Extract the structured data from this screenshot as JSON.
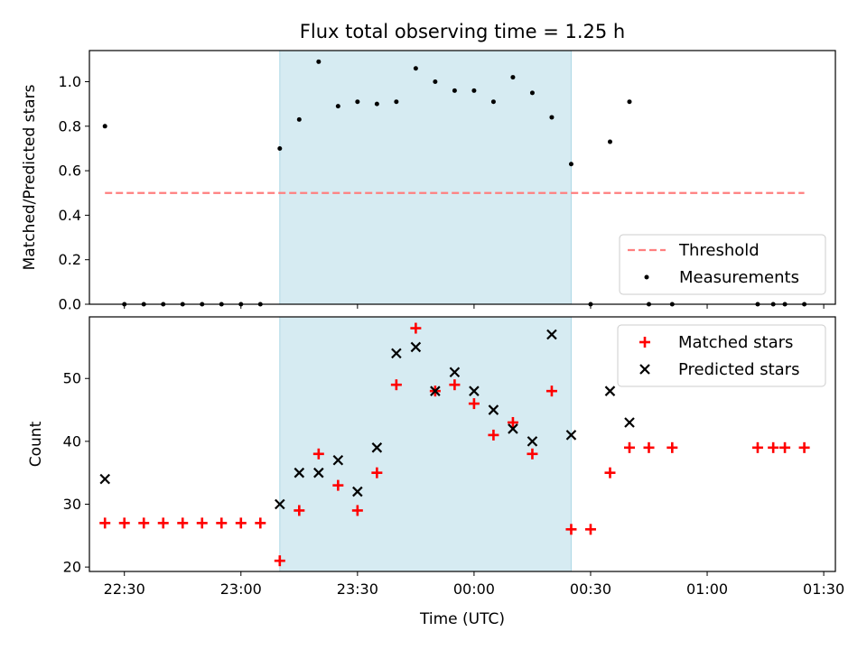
{
  "chart_data": [
    {
      "type": "scatter",
      "title": "Flux total observing time = 1.25 h",
      "ylabel": "Matched/Predicted stars",
      "xlabel": "",
      "ylim": [
        0,
        1.14
      ],
      "yticks": [
        "0.0",
        "0.2",
        "0.4",
        "0.6",
        "0.8",
        "1.0"
      ],
      "xlim": [
        "22:21",
        "01:33"
      ],
      "shaded_interval": [
        "23:10",
        "00:25"
      ],
      "threshold": {
        "name": "Threshold",
        "value": 0.5,
        "x": [
          "22:25",
          "01:25"
        ],
        "color": "#ff7f7f",
        "style": "dashed"
      },
      "series": [
        {
          "name": "Measurements",
          "color": "#000000",
          "x": [
            "22:25",
            "22:30",
            "22:35",
            "22:40",
            "22:45",
            "22:50",
            "22:55",
            "23:00",
            "23:05",
            "23:10",
            "23:15",
            "23:20",
            "23:25",
            "23:30",
            "23:35",
            "23:40",
            "23:45",
            "23:50",
            "23:55",
            "00:00",
            "00:05",
            "00:10",
            "00:15",
            "00:20",
            "00:25",
            "00:30",
            "00:35",
            "00:40",
            "00:45",
            "00:51",
            "01:13",
            "01:17",
            "01:20",
            "01:25"
          ],
          "y": [
            0.8,
            0,
            0,
            0,
            0,
            0,
            0,
            0,
            0,
            0.7,
            0.83,
            1.09,
            0.89,
            0.91,
            0.9,
            0.91,
            1.06,
            1.0,
            0.96,
            0.96,
            0.91,
            1.02,
            0.95,
            0.84,
            0.63,
            0,
            0.73,
            0.91,
            0,
            0,
            0,
            0,
            0,
            0
          ]
        }
      ],
      "legend_position": "lower-right",
      "shade_color": "#add8e6"
    },
    {
      "type": "scatter",
      "title": "",
      "ylabel": "Count",
      "xlabel": "Time (UTC)",
      "ylim": [
        19.3,
        59.8
      ],
      "yticks": [
        "20",
        "30",
        "40",
        "50"
      ],
      "xlim": [
        "22:21",
        "01:33"
      ],
      "xticks": [
        "22:30",
        "23:00",
        "23:30",
        "00:00",
        "00:30",
        "01:00",
        "01:30"
      ],
      "shaded_interval": [
        "23:10",
        "00:25"
      ],
      "series": [
        {
          "name": "Matched stars",
          "marker": "plus",
          "color": "#ff0000",
          "x": [
            "22:25",
            "22:30",
            "22:35",
            "22:40",
            "22:45",
            "22:50",
            "22:55",
            "23:00",
            "23:05",
            "23:10",
            "23:15",
            "23:20",
            "23:25",
            "23:30",
            "23:35",
            "23:40",
            "23:45",
            "23:50",
            "23:55",
            "00:00",
            "00:05",
            "00:10",
            "00:15",
            "00:20",
            "00:25",
            "00:30",
            "00:35",
            "00:40",
            "00:45",
            "00:51",
            "01:13",
            "01:17",
            "01:20",
            "01:25"
          ],
          "y": [
            27,
            27,
            27,
            27,
            27,
            27,
            27,
            27,
            27,
            21,
            29,
            38,
            33,
            29,
            35,
            49,
            58,
            48,
            49,
            46,
            41,
            43,
            38,
            48,
            26,
            26,
            35,
            39,
            39,
            39,
            39,
            39,
            39,
            39
          ]
        },
        {
          "name": "Predicted stars",
          "marker": "x",
          "color": "#000000",
          "x": [
            "22:25",
            "23:10",
            "23:15",
            "23:20",
            "23:25",
            "23:30",
            "23:35",
            "23:40",
            "23:45",
            "23:50",
            "23:55",
            "00:00",
            "00:05",
            "00:10",
            "00:15",
            "00:20",
            "00:25",
            "00:35",
            "00:40"
          ],
          "y": [
            34,
            30,
            35,
            35,
            37,
            32,
            39,
            54,
            55,
            48,
            51,
            48,
            45,
            42,
            40,
            57,
            41,
            48,
            43
          ]
        }
      ],
      "legend_position": "upper-right",
      "shade_color": "#add8e6"
    }
  ]
}
